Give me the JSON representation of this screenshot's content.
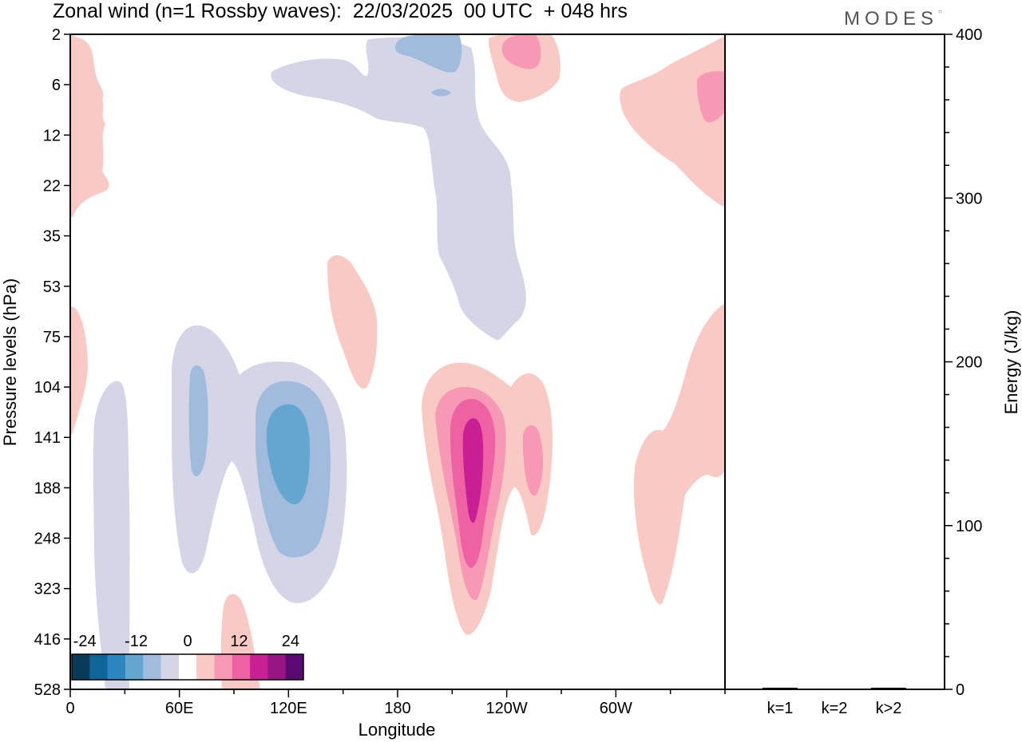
{
  "header": {
    "title": "Zonal wind (n=1 Rossby waves):  22/03/2025  00 UTC  + 048 hrs",
    "brand": "MODES"
  },
  "colors": {
    "frame": "#000000",
    "neg_levels": [
      "#0a3a5a",
      "#0f6597",
      "#2b86c0",
      "#64a6d0",
      "#a1bbdc",
      "#d4d6e8"
    ],
    "zero": "#ffffff",
    "pos_levels": [
      "#f9c9c4",
      "#f799b5",
      "#ee62a4",
      "#c81f94",
      "#951583",
      "#5a0a6e"
    ]
  },
  "chart_data": [
    {
      "type": "heatmap",
      "title": "Zonal wind (n=1 Rossby waves)",
      "xlabel": "Longitude",
      "ylabel": "Pressure levels (hPa)",
      "x_ticks": [
        "0",
        "60E",
        "120E",
        "180",
        "120W",
        "60W"
      ],
      "x_tick_degrees": [
        0,
        60,
        120,
        180,
        240,
        300
      ],
      "xlim": [
        0,
        360
      ],
      "y_ticks": [
        "2",
        "6",
        "12",
        "22",
        "35",
        "53",
        "75",
        "104",
        "141",
        "188",
        "248",
        "323",
        "416",
        "528"
      ],
      "y_scale": "pressure levels, 2 hPa at top to 528 hPa at bottom",
      "colorbar": {
        "labels": [
          "-24",
          "-12",
          "0",
          "12",
          "24"
        ],
        "label_values": [
          -24,
          -12,
          0,
          12,
          24
        ],
        "level_count": 13
      },
      "features": [
        {
          "sign": "negative",
          "max_abs": 15,
          "lon_range": [
            "120E",
            "130E"
          ],
          "pressure_hPa": [
            104,
            248
          ]
        },
        {
          "sign": "negative",
          "max_abs": 12,
          "lon_range": [
            "60E",
            "70E"
          ],
          "pressure_hPa": [
            104,
            188
          ]
        },
        {
          "sign": "negative",
          "max_abs": 9,
          "lon_range": [
            "170E",
            "180"
          ],
          "pressure_hPa": [
            2,
            6
          ]
        },
        {
          "sign": "negative",
          "max_abs": 6,
          "lon_range": [
            "0",
            "30E"
          ],
          "pressure_hPa": [
            104,
            528
          ]
        },
        {
          "sign": "positive",
          "max_abs": 21,
          "lon_range": [
            "150W",
            "140W"
          ],
          "pressure_hPa": [
            141,
            248
          ]
        },
        {
          "sign": "positive",
          "max_abs": 9,
          "lon_range": [
            "130W",
            "120W"
          ],
          "pressure_hPa": [
            2,
            6
          ]
        },
        {
          "sign": "positive",
          "max_abs": 9,
          "lon_range": [
            "10W",
            "0"
          ],
          "pressure_hPa": [
            6,
            12
          ]
        },
        {
          "sign": "positive",
          "max_abs": 3,
          "lon_range": [
            "60W",
            "0"
          ],
          "pressure_hPa": [
            75,
            416
          ]
        },
        {
          "sign": "positive",
          "max_abs": 3,
          "lon_range": [
            "140E",
            "170E"
          ],
          "pressure_hPa": [
            53,
            104
          ]
        }
      ]
    },
    {
      "type": "bar",
      "ylabel": "Energy (J/kg)",
      "categories": [
        "k=1",
        "k=2",
        "k>2"
      ],
      "values": [
        1,
        0,
        1
      ],
      "ylim": [
        0,
        400
      ],
      "y_ticks": [
        "0",
        "100",
        "200",
        "300",
        "400"
      ],
      "y_tick_values": [
        0,
        100,
        200,
        300,
        400
      ]
    }
  ]
}
